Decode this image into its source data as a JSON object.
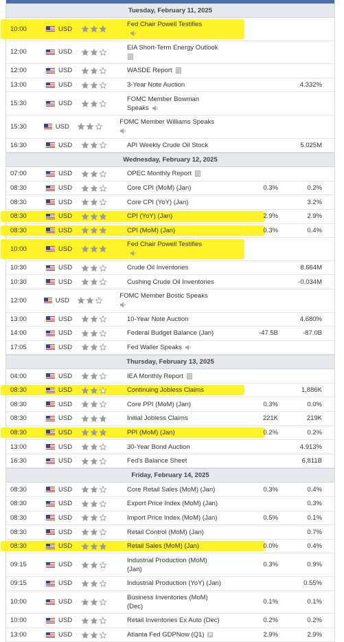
{
  "days": [
    {
      "title": "Tuesday, February 11, 2025",
      "events": [
        {
          "time": "10:00",
          "currency": "USD",
          "importance": 3,
          "event": "Fed Chair Powell Testifies",
          "icon": "speaker",
          "highlight": true
        },
        {
          "time": "12:00",
          "currency": "USD",
          "importance": 2,
          "event": "EIA Short-Term Energy Outlook",
          "icon": "report",
          "wrap_icon": true
        },
        {
          "time": "12:00",
          "currency": "USD",
          "importance": 2,
          "event": "WASDE Report",
          "icon": "report"
        },
        {
          "time": "13:00",
          "currency": "USD",
          "importance": 2,
          "event": "3-Year Note Auction",
          "forecast": "4.332%"
        },
        {
          "time": "15:30",
          "currency": "USD",
          "importance": 2,
          "event": "FOMC Member Bowman Speaks",
          "icon": "speaker"
        },
        {
          "time": "15:30",
          "currency": "USD",
          "importance": 2,
          "event": "FOMC Member Williams Speaks",
          "icon": "speaker",
          "wrap_icon": true
        },
        {
          "time": "16:30",
          "currency": "USD",
          "importance": 2,
          "event": "API Weekly Crude Oil Stock",
          "forecast": "5.025M"
        }
      ]
    },
    {
      "title": "Wednesday, February 12, 2025",
      "events": [
        {
          "time": "07:00",
          "currency": "USD",
          "importance": 2,
          "event": "OPEC Monthly Report",
          "icon": "report"
        },
        {
          "time": "08:30",
          "currency": "USD",
          "importance": 2,
          "event": "Core CPI (MoM) (Jan)",
          "actual": "0.3%",
          "forecast": "0.2%"
        },
        {
          "time": "08:30",
          "currency": "USD",
          "importance": 2,
          "event": "Core CPI (YoY) (Jan)",
          "forecast": "3.2%"
        },
        {
          "time": "08:30",
          "currency": "USD",
          "importance": 3,
          "event": "CPI (YoY) (Jan)",
          "actual": "2.9%",
          "forecast": "2.9%",
          "highlight": true
        },
        {
          "time": "08:30",
          "currency": "USD",
          "importance": 3,
          "event": "CPI (MoM) (Jan)",
          "actual": "0.3%",
          "forecast": "0.4%",
          "highlight": true
        },
        {
          "time": "10:00",
          "currency": "USD",
          "importance": 3,
          "event": "Fed Chair Powell Testifies",
          "icon": "speaker",
          "highlight": true
        },
        {
          "time": "10:30",
          "currency": "USD",
          "importance": 2,
          "event": "Crude Oil Inventories",
          "forecast": "8.664M"
        },
        {
          "time": "10:30",
          "currency": "USD",
          "importance": 2,
          "event": "Cushing Crude Oil Inventories",
          "forecast": "-0.034M"
        },
        {
          "time": "12:00",
          "currency": "USD",
          "importance": 2,
          "event": "FOMC Member Bostic Speaks",
          "icon": "speaker",
          "wrap_icon": true
        },
        {
          "time": "13:00",
          "currency": "USD",
          "importance": 2,
          "event": "10-Year Note Auction",
          "forecast": "4.680%"
        },
        {
          "time": "14:00",
          "currency": "USD",
          "importance": 2,
          "event": "Federal Budget Balance (Jan)",
          "actual": "-47.5B",
          "forecast": "-87.0B"
        },
        {
          "time": "17:05",
          "currency": "USD",
          "importance": 2,
          "event": "Fed Waller Speaks",
          "icon": "speaker"
        }
      ]
    },
    {
      "title": "Thursday, February 13, 2025",
      "events": [
        {
          "time": "04:00",
          "currency": "USD",
          "importance": 2,
          "event": "IEA Monthly Report",
          "icon": "report"
        },
        {
          "time": "08:30",
          "currency": "USD",
          "importance": 2,
          "event": "Continuing Jobless Claims",
          "forecast": "1,886K",
          "highlight": true
        },
        {
          "time": "08:30",
          "currency": "USD",
          "importance": 2,
          "event": "Core PPI (MoM) (Jan)",
          "actual": "0.3%",
          "forecast": "0.0%"
        },
        {
          "time": "08:30",
          "currency": "USD",
          "importance": 3,
          "event": "Initial Jobless Claims",
          "actual": "221K",
          "forecast": "219K"
        },
        {
          "time": "08:30",
          "currency": "USD",
          "importance": 3,
          "event": "PPI (MoM) (Jan)",
          "actual": "0.2%",
          "forecast": "0.2%",
          "highlight": true
        },
        {
          "time": "13:00",
          "currency": "USD",
          "importance": 2,
          "event": "30-Year Bond Auction",
          "forecast": "4.913%"
        },
        {
          "time": "16:30",
          "currency": "USD",
          "importance": 2,
          "event": "Fed's Balance Sheet",
          "forecast": "6,811B"
        }
      ]
    },
    {
      "title": "Friday, February 14, 2025",
      "events": [
        {
          "time": "08:30",
          "currency": "USD",
          "importance": 2,
          "event": "Core Retail Sales (MoM) (Jan)",
          "actual": "0.3%",
          "forecast": "0.4%"
        },
        {
          "time": "08:30",
          "currency": "USD",
          "importance": 2,
          "event": "Export Price Index (MoM) (Jan)",
          "forecast": "0.3%"
        },
        {
          "time": "08:30",
          "currency": "USD",
          "importance": 2,
          "event": "Import Price Index (MoM) (Jan)",
          "actual": "0.5%",
          "forecast": "0.1%"
        },
        {
          "time": "08:30",
          "currency": "USD",
          "importance": 2,
          "event": "Retail Control (MoM) (Jan)",
          "forecast": "0.7%"
        },
        {
          "time": "08:30",
          "currency": "USD",
          "importance": 3,
          "event": "Retail Sales (MoM) (Jan)",
          "actual": "0.0%",
          "forecast": "0.4%",
          "highlight": true
        },
        {
          "time": "09:15",
          "currency": "USD",
          "importance": 2,
          "event": "Industrial Production (MoM) (Jan)",
          "actual": "0.3%",
          "forecast": "0.9%",
          "narrow": true
        },
        {
          "time": "09:15",
          "currency": "USD",
          "importance": 2,
          "event": "Industrial Production (YoY) (Jan)",
          "forecast": "0.55%"
        },
        {
          "time": "10:00",
          "currency": "USD",
          "importance": 2,
          "event": "Business Inventories (MoM) (Dec)",
          "actual": "0.1%",
          "forecast": "0.1%",
          "narrow": true
        },
        {
          "time": "10:00",
          "currency": "USD",
          "importance": 2,
          "event": "Retail Inventories Ex Auto (Dec)",
          "actual": "0.2%",
          "forecast": "0.2%"
        },
        {
          "time": "13:00",
          "currency": "USD",
          "importance": 2,
          "event": "Atlanta Fed GDPNow (Q1)",
          "actual": "2.9%",
          "forecast": "2.9%",
          "icon": "preliminary"
        }
      ]
    }
  ]
}
